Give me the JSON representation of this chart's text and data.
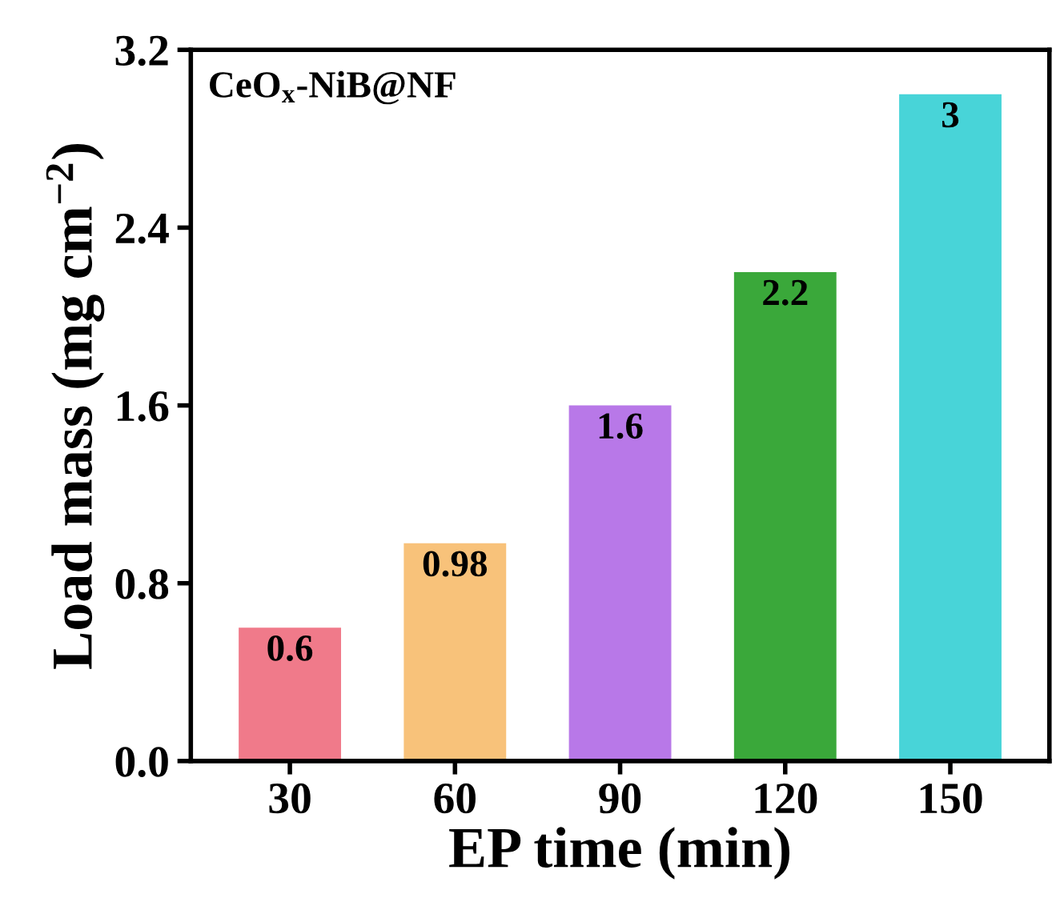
{
  "chart_data": {
    "type": "bar",
    "title": "CeO$_{x}$-NiB@NF",
    "xlabel": "EP time (min)",
    "ylabel": "Load mass (mg cm$^{−2}$)",
    "categories": [
      "30",
      "60",
      "90",
      "120",
      "150"
    ],
    "values": [
      0.6,
      0.98,
      1.6,
      2.2,
      3
    ],
    "colors": [
      "#f07a8a",
      "#f8c27a",
      "#b878e8",
      "#3aa83a",
      "#48d4d8"
    ],
    "ylim": [
      0,
      3.2
    ],
    "yticks": [
      {
        "value": 0,
        "label": "0.0"
      },
      {
        "value": 0.8,
        "label": "0.8"
      },
      {
        "value": 1.6,
        "label": "1.6"
      },
      {
        "value": 2.4,
        "label": "2.4"
      },
      {
        "value": 3.2,
        "label": "3.2"
      }
    ],
    "data_labels": true
  }
}
